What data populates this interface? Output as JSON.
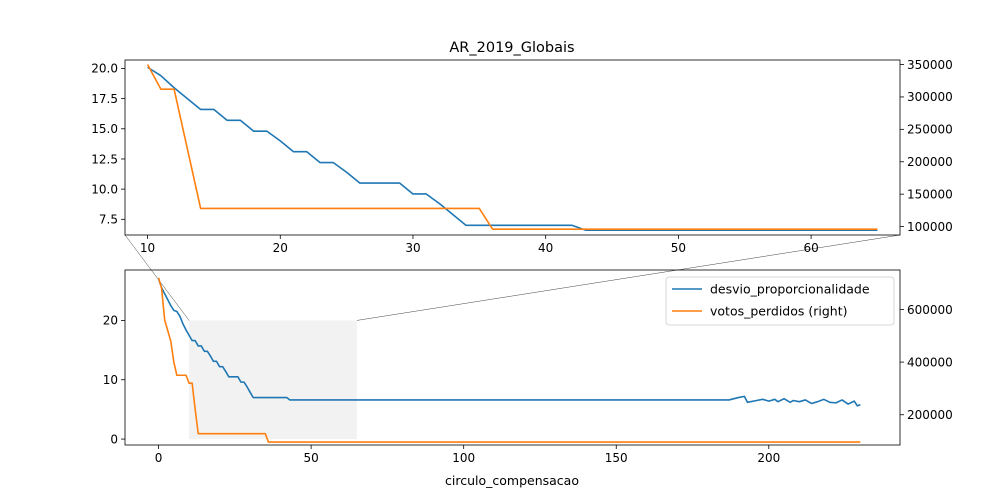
{
  "chart_data": [
    {
      "type": "line",
      "title": "AR_2019_Globais",
      "xlabel": "",
      "xlim": [
        8.3,
        66.7
      ],
      "ylim_left": [
        6.2,
        20.7
      ],
      "ylim_right": [
        87000,
        357000
      ],
      "x_ticks": [
        "10",
        "20",
        "30",
        "40",
        "50",
        "60"
      ],
      "y_ticks_left": [
        "7.5",
        "10.0",
        "12.5",
        "15.0",
        "17.5",
        "20.0"
      ],
      "y_ticks_right": [
        "100000",
        "150000",
        "200000",
        "250000",
        "300000",
        "350000"
      ],
      "grid": false,
      "series": [
        {
          "name": "desvio_proporcionalidade",
          "color": "#1f77b4",
          "axis": "left",
          "x": [
            10,
            11,
            12,
            13,
            14,
            15,
            16,
            17,
            18,
            19,
            20,
            21,
            22,
            23,
            24,
            25,
            26,
            27,
            28,
            29,
            30,
            31,
            32,
            33,
            34,
            35,
            36,
            37,
            38,
            39,
            40,
            41,
            42,
            43,
            44,
            45,
            46,
            47,
            48,
            49,
            50,
            51,
            52,
            53,
            54,
            55,
            56,
            57,
            58,
            59,
            60,
            61,
            62,
            63,
            64,
            65
          ],
          "y": [
            20.1,
            19.4,
            18.4,
            17.5,
            16.6,
            16.6,
            15.7,
            15.7,
            14.8,
            14.8,
            14.0,
            13.1,
            13.1,
            12.2,
            12.2,
            11.4,
            10.5,
            10.5,
            10.5,
            10.5,
            9.6,
            9.6,
            8.8,
            7.9,
            7.0,
            7.0,
            7.0,
            7.0,
            7.0,
            7.0,
            7.0,
            7.0,
            7.0,
            6.6,
            6.6,
            6.6,
            6.6,
            6.6,
            6.6,
            6.6,
            6.6,
            6.6,
            6.6,
            6.6,
            6.6,
            6.6,
            6.6,
            6.6,
            6.6,
            6.6,
            6.6,
            6.6,
            6.6,
            6.6,
            6.6,
            6.6
          ]
        },
        {
          "name": "votos_perdidos (right)",
          "color": "#ff7f0e",
          "axis": "right",
          "x": [
            10,
            11,
            12,
            13,
            14,
            35,
            36,
            65
          ],
          "y": [
            350000,
            312000,
            312000,
            220000,
            128000,
            128000,
            96000,
            96000
          ]
        }
      ]
    },
    {
      "type": "line",
      "title": "",
      "xlabel": "circulo_compensacao",
      "xlim": [
        -11,
        243
      ],
      "ylim_left": [
        -1,
        28.5
      ],
      "ylim_right": [
        85000,
        750000
      ],
      "x_ticks": [
        "0",
        "50",
        "100",
        "150",
        "200"
      ],
      "y_ticks_left": [
        "0",
        "10",
        "20"
      ],
      "y_ticks_right": [
        "200000",
        "400000",
        "600000"
      ],
      "legend": "top-right",
      "grid": false,
      "zoom_region": {
        "x": [
          10,
          65
        ],
        "y": [
          0,
          20
        ]
      },
      "series": [
        {
          "name": "desvio_proporcionalidade",
          "color": "#1f77b4",
          "axis": "left",
          "x": [
            0,
            1,
            2,
            3,
            4,
            5,
            6,
            7,
            8,
            9,
            10,
            11,
            12,
            13,
            14,
            15,
            16,
            17,
            18,
            19,
            20,
            21,
            22,
            23,
            24,
            25,
            26,
            27,
            28,
            29,
            30,
            31,
            32,
            33,
            34,
            35,
            36,
            37,
            38,
            39,
            40,
            41,
            42,
            43,
            50,
            100,
            150,
            187,
            190,
            192,
            193,
            196,
            198,
            200,
            202,
            203,
            205,
            207,
            208,
            210,
            212,
            214,
            216,
            218,
            220,
            222,
            224,
            226,
            228,
            229,
            230
          ],
          "y": [
            27.0,
            25.5,
            24.5,
            23.5,
            22.5,
            21.7,
            21.5,
            20.7,
            19.4,
            18.4,
            17.5,
            16.6,
            16.6,
            15.7,
            15.7,
            14.8,
            14.8,
            14.0,
            13.1,
            13.1,
            12.2,
            12.2,
            11.4,
            10.5,
            10.5,
            10.5,
            10.5,
            9.6,
            9.6,
            8.8,
            7.9,
            7.0,
            7.0,
            7.0,
            7.0,
            7.0,
            7.0,
            7.0,
            7.0,
            7.0,
            7.0,
            7.0,
            7.0,
            6.6,
            6.6,
            6.6,
            6.6,
            6.6,
            7.0,
            7.2,
            6.2,
            6.5,
            6.7,
            6.4,
            6.7,
            6.3,
            6.8,
            6.2,
            6.5,
            6.3,
            6.6,
            6.0,
            6.3,
            6.7,
            6.2,
            6.1,
            6.6,
            5.9,
            6.4,
            5.6,
            5.8
          ]
        },
        {
          "name": "votos_perdidos (right)",
          "color": "#ff7f0e",
          "axis": "right",
          "x": [
            0,
            1,
            2,
            3,
            4,
            5,
            6,
            7,
            8,
            9,
            10,
            11,
            12,
            13,
            14,
            35,
            36,
            230
          ],
          "y": [
            720000,
            680000,
            560000,
            520000,
            480000,
            400000,
            350000,
            350000,
            350000,
            350000,
            320000,
            320000,
            220000,
            128000,
            128000,
            128000,
            96000,
            96000
          ]
        }
      ]
    }
  ]
}
